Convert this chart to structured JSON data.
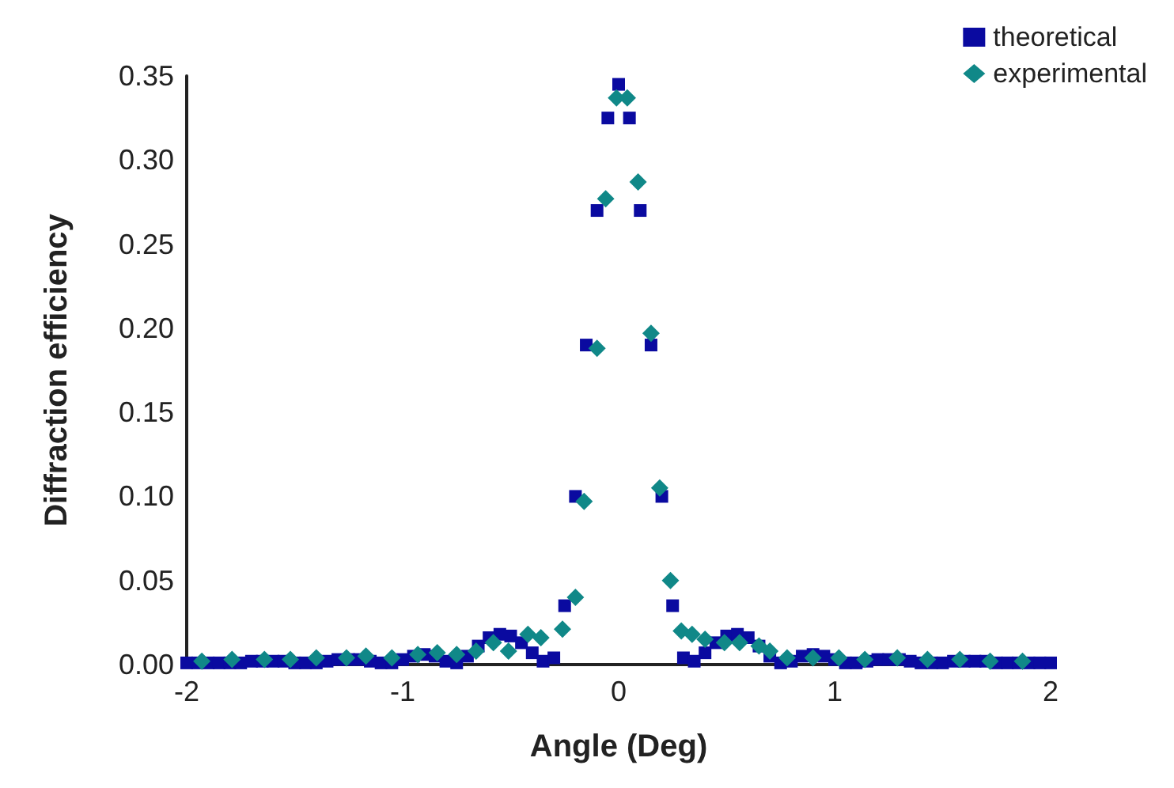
{
  "chart_data": {
    "type": "scatter",
    "xlabel": "Angle (Deg)",
    "ylabel": "Diffraction efficiency",
    "xlim": [
      -2,
      2
    ],
    "xticks": [
      -2,
      -1,
      0,
      1,
      2
    ],
    "ylim": [
      0,
      0.35
    ],
    "yticks": [
      {
        "value": 0,
        "label": "0.00"
      },
      {
        "value": 0.05,
        "label": "0.05"
      },
      {
        "value": 0.1,
        "label": "0.10"
      },
      {
        "value": 0.15,
        "label": "0.15"
      },
      {
        "value": 0.2,
        "label": "0.20"
      },
      {
        "value": 0.25,
        "label": "0.25"
      },
      {
        "value": 0.3,
        "label": "0.30"
      },
      {
        "value": 0.35,
        "label": "0.35"
      }
    ],
    "grid": false,
    "legend": "top right",
    "series": [
      {
        "name": "theoretical",
        "color": "#0a0aa0",
        "marker": "square",
        "x": [
          -2,
          -1.95,
          -1.9,
          -1.85,
          -1.8,
          -1.75,
          -1.7,
          -1.65,
          -1.6,
          -1.55,
          -1.5,
          -1.45,
          -1.4,
          -1.35,
          -1.3,
          -1.25,
          -1.2,
          -1.15,
          -1.1,
          -1.05,
          -1,
          -0.95,
          -0.9,
          -0.85,
          -0.8,
          -0.75,
          -0.7,
          -0.65,
          -0.6,
          -0.55,
          -0.5,
          -0.45,
          -0.4,
          -0.35,
          -0.3,
          -0.25,
          -0.2,
          -0.15,
          -0.1,
          -0.05,
          0,
          0.05,
          0.1,
          0.15,
          0.2,
          0.25,
          0.3,
          0.35,
          0.4,
          0.45,
          0.5,
          0.55,
          0.6,
          0.65,
          0.7,
          0.75,
          0.8,
          0.85,
          0.9,
          0.95,
          1,
          1.05,
          1.1,
          1.15,
          1.2,
          1.25,
          1.3,
          1.35,
          1.4,
          1.45,
          1.5,
          1.55,
          1.6,
          1.65,
          1.7,
          1.75,
          1.8,
          1.85,
          1.9,
          1.95,
          2
        ],
        "values": [
          0.001,
          0.001,
          0.001,
          0.001,
          0.001,
          0.001,
          0.002,
          0.002,
          0.002,
          0.002,
          0.001,
          0.001,
          0.001,
          0.002,
          0.003,
          0.003,
          0.003,
          0.002,
          0.001,
          0.001,
          0.003,
          0.005,
          0.006,
          0.005,
          0.002,
          0.001,
          0.005,
          0.011,
          0.016,
          0.018,
          0.017,
          0.013,
          0.007,
          0.002,
          0.004,
          0.035,
          0.1,
          0.19,
          0.27,
          0.325,
          0.345,
          0.325,
          0.27,
          0.19,
          0.1,
          0.035,
          0.004,
          0.002,
          0.007,
          0.013,
          0.017,
          0.018,
          0.016,
          0.011,
          0.005,
          0.001,
          0.002,
          0.005,
          0.006,
          0.005,
          0.003,
          0.001,
          0.001,
          0.002,
          0.003,
          0.003,
          0.003,
          0.002,
          0.001,
          0.001,
          0.001,
          0.002,
          0.002,
          0.002,
          0.002,
          0.001,
          0.001,
          0.001,
          0.001,
          0.001,
          0.001
        ]
      },
      {
        "name": "experimental",
        "color": "#108888",
        "marker": "diamond",
        "x": [
          -1.93,
          -1.79,
          -1.64,
          -1.52,
          -1.4,
          -1.26,
          -1.17,
          -1.05,
          -0.93,
          -0.84,
          -0.75,
          -0.66,
          -0.58,
          -0.51,
          -0.42,
          -0.36,
          -0.26,
          -0.2,
          -0.16,
          -0.1,
          -0.06,
          -0.01,
          0.04,
          0.09,
          0.15,
          0.19,
          0.24,
          0.29,
          0.34,
          0.4,
          0.49,
          0.56,
          0.65,
          0.7,
          0.78,
          0.9,
          1.02,
          1.14,
          1.29,
          1.43,
          1.58,
          1.72,
          1.87
        ],
        "values": [
          0.002,
          0.003,
          0.003,
          0.003,
          0.004,
          0.004,
          0.005,
          0.004,
          0.006,
          0.007,
          0.006,
          0.008,
          0.013,
          0.008,
          0.018,
          0.016,
          0.021,
          0.04,
          0.097,
          0.188,
          0.277,
          0.337,
          0.337,
          0.287,
          0.197,
          0.105,
          0.05,
          0.02,
          0.018,
          0.015,
          0.013,
          0.013,
          0.011,
          0.008,
          0.004,
          0.004,
          0.004,
          0.003,
          0.004,
          0.003,
          0.003,
          0.002,
          0.002
        ]
      }
    ]
  }
}
